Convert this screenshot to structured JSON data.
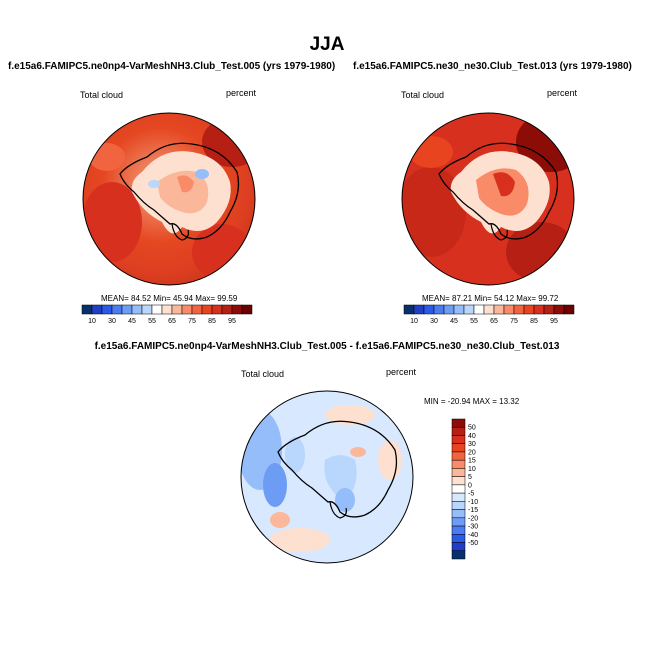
{
  "title": "JJA",
  "colors": {
    "land_outline": "#000000",
    "warm": [
      "#ffffff",
      "#fde0d0",
      "#fbb79a",
      "#f98b68",
      "#f26440",
      "#e8441f",
      "#d7301f",
      "#b51f14",
      "#8c0c08",
      "#6e0000"
    ],
    "cool": [
      "#08306b",
      "#1f3fc4",
      "#2a5be8",
      "#4a7bf0",
      "#6d9cf5",
      "#94bdfa",
      "#b9d6fd",
      "#d8e9ff"
    ],
    "diff_bg": "#d7e8ff"
  },
  "panels": [
    {
      "id": "test005",
      "title": "f.e15a6.FAMIPC5.ne0np4-VarMeshNH3.Club_Test.005 (yrs 1979-1980)",
      "variable": "Total cloud",
      "units": "percent",
      "stats": {
        "mean": "84.52",
        "min": "45.94",
        "max": "99.59"
      },
      "stats_text": "MEAN=  84.52  Min=  45.94  Max=  99.59"
    },
    {
      "id": "test013",
      "title": "f.e15a6.FAMIPC5.ne30_ne30.Club_Test.013 (yrs 1979-1980)",
      "variable": "Total cloud",
      "units": "percent",
      "stats": {
        "mean": "87.21",
        "min": "54.12",
        "max": "99.72"
      },
      "stats_text": "MEAN=  87.21  Min=  54.12  Max=  99.72"
    }
  ],
  "colorbar_main": {
    "labels": [
      "10",
      "30",
      "45",
      "55",
      "65",
      "75",
      "85",
      "95"
    ],
    "colors": [
      "#08306b",
      "#1f3fc4",
      "#2a5be8",
      "#4a7bf0",
      "#6d9cf5",
      "#94bdfa",
      "#b9d6fd",
      "#ffffff",
      "#fde0d0",
      "#fbb79a",
      "#f98b68",
      "#f26440",
      "#e8441f",
      "#d7301f",
      "#b51f14",
      "#8c0c08",
      "#6e0000"
    ]
  },
  "difference": {
    "title": "f.e15a6.FAMIPC5.ne0np4-VarMeshNH3.Club_Test.005 - f.e15a6.FAMIPC5.ne30_ne30.Club_Test.013",
    "variable": "Total cloud",
    "units": "percent",
    "stats": {
      "min": "-20.94",
      "max": "13.32"
    },
    "stats_text": "MIN = -20.94 MAX =  13.32",
    "colorbar": {
      "labels": [
        "50",
        "40",
        "30",
        "20",
        "15",
        "10",
        "5",
        "0",
        "-5",
        "-10",
        "-15",
        "-20",
        "-30",
        "-40",
        "-50"
      ],
      "colors": [
        "#8c0c08",
        "#b51f14",
        "#d7301f",
        "#e8441f",
        "#f26440",
        "#f98b68",
        "#fbb79a",
        "#fde0d0",
        "#ffffff",
        "#d8e9ff",
        "#b9d6fd",
        "#94bdfa",
        "#6d9cf5",
        "#4a7bf0",
        "#2a5be8",
        "#1f3fc4",
        "#08306b"
      ]
    }
  }
}
